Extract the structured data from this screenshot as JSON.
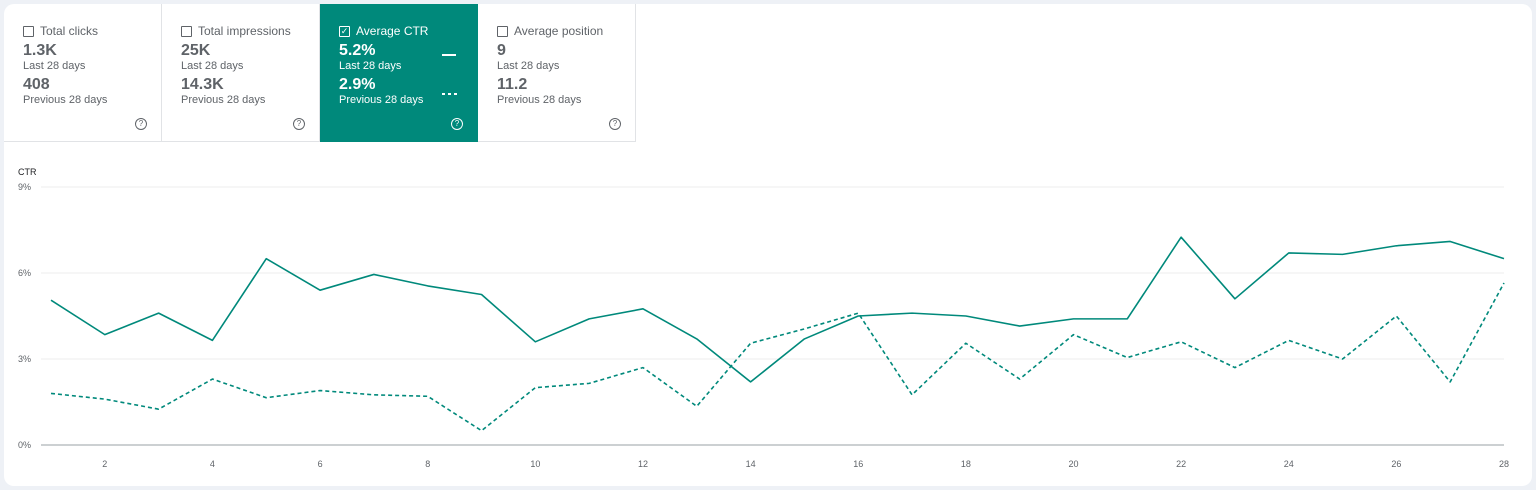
{
  "cards": [
    {
      "label": "Total clicks",
      "value": "1.3K",
      "period": "Last 28 days",
      "prev_value": "408",
      "prev_period": "Previous 28 days",
      "checked": false
    },
    {
      "label": "Total impressions",
      "value": "25K",
      "period": "Last 28 days",
      "prev_value": "14.3K",
      "prev_period": "Previous 28 days",
      "checked": false
    },
    {
      "label": "Average CTR",
      "value": "5.2%",
      "period": "Last 28 days",
      "prev_value": "2.9%",
      "prev_period": "Previous 28 days",
      "checked": true
    },
    {
      "label": "Average position",
      "value": "9",
      "period": "Last 28 days",
      "prev_value": "11.2",
      "prev_period": "Previous 28 days",
      "checked": false
    }
  ],
  "help_glyph": "?",
  "check_glyph": "✓",
  "colors": {
    "accent": "#00897b",
    "grid": "#eeeeee",
    "axis": "#9aa0a6"
  },
  "chart_data": {
    "type": "line",
    "ylabel": "CTR",
    "ylim": [
      0,
      9
    ],
    "yticks": [
      "0%",
      "3%",
      "6%",
      "9%"
    ],
    "ytick_values": [
      0,
      3,
      6,
      9
    ],
    "x": [
      1,
      2,
      3,
      4,
      5,
      6,
      7,
      8,
      9,
      10,
      11,
      12,
      13,
      14,
      15,
      16,
      17,
      18,
      19,
      20,
      21,
      22,
      23,
      24,
      25,
      26,
      27,
      28
    ],
    "xticks": [
      2,
      4,
      6,
      8,
      10,
      12,
      14,
      16,
      18,
      20,
      22,
      24,
      26,
      28
    ],
    "grid": true,
    "series": [
      {
        "style": "solid",
        "values": [
          5.05,
          3.85,
          4.6,
          3.65,
          6.5,
          5.4,
          5.95,
          5.55,
          5.25,
          3.6,
          4.4,
          4.75,
          3.7,
          2.2,
          3.7,
          4.5,
          4.6,
          4.5,
          4.15,
          4.4,
          4.4,
          7.25,
          5.1,
          6.7,
          6.65,
          6.95,
          7.1,
          6.5
        ]
      },
      {
        "style": "dashed",
        "values": [
          1.8,
          1.6,
          1.25,
          2.3,
          1.65,
          1.9,
          1.75,
          1.7,
          0.5,
          2.0,
          2.15,
          2.7,
          1.35,
          3.55,
          4.05,
          4.6,
          1.75,
          3.55,
          2.3,
          3.85,
          3.05,
          3.6,
          2.7,
          3.65,
          3.0,
          4.5,
          2.2,
          5.65
        ]
      }
    ]
  }
}
